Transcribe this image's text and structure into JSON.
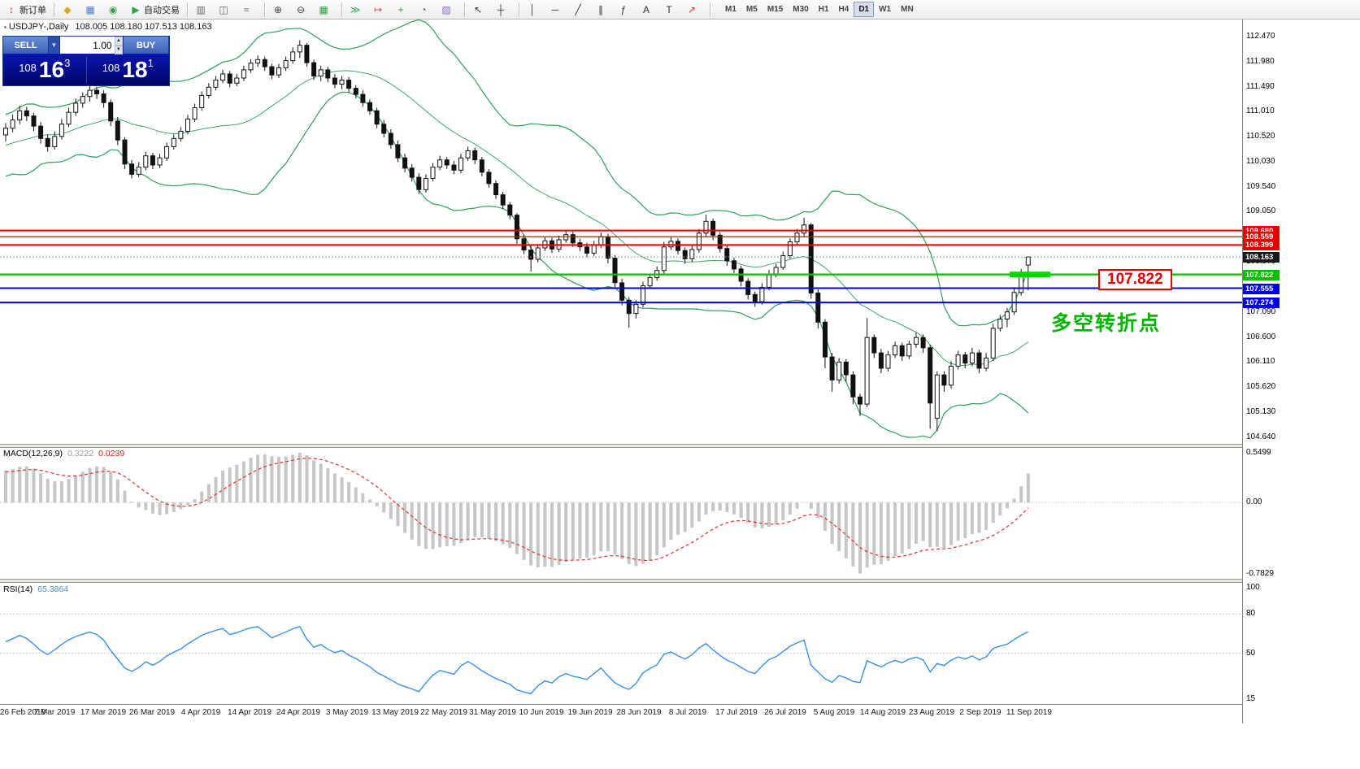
{
  "toolbar": {
    "items": [
      {
        "n": "new-order-button",
        "g": "↕",
        "c": "#cc3333",
        "l": "新订单"
      },
      {
        "sep": true
      },
      {
        "n": "metaeditor-icon",
        "g": "◆",
        "c": "#e0a820"
      },
      {
        "n": "market-watch-icon",
        "g": "▦",
        "c": "#4f7cc8"
      },
      {
        "n": "community-icon",
        "g": "◉",
        "c": "#3da04e"
      },
      {
        "n": "autotrading-button",
        "g": "▶",
        "c": "#2ba443",
        "l": "自动交易"
      },
      {
        "sep": true
      },
      {
        "n": "bar-chart-icon",
        "g": "▥",
        "c": "#666666"
      },
      {
        "n": "candlestick-chart-icon",
        "g": "◫",
        "c": "#666666"
      },
      {
        "n": "line-chart-icon",
        "g": "≈",
        "c": "#666666"
      },
      {
        "sep": true
      },
      {
        "n": "zoom-in-icon",
        "g": "⊕",
        "c": "#444444"
      },
      {
        "n": "zoom-out-icon",
        "g": "⊖",
        "c": "#444444"
      },
      {
        "n": "tile-windows-icon",
        "g": "▦",
        "c": "#2ba443"
      },
      {
        "sep": true
      },
      {
        "n": "auto-scroll-icon",
        "g": "≫",
        "c": "#2ba443"
      },
      {
        "n": "chart-shift-icon",
        "g": "↦",
        "c": "#c05050"
      },
      {
        "n": "indicators-icon",
        "g": "+",
        "c": "#2ba443"
      },
      {
        "n": "periods-icon",
        "g": "◔",
        "c": "#666666"
      },
      {
        "n": "templates-icon",
        "g": "▨",
        "c": "#8a6fc0"
      },
      {
        "sep": true
      },
      {
        "n": "cursor-icon",
        "g": "↖",
        "c": "#333333"
      },
      {
        "n": "crosshair-icon",
        "g": "┼",
        "c": "#333333"
      },
      {
        "sep": true
      },
      {
        "n": "vertical-line-icon",
        "g": "│",
        "c": "#333333"
      },
      {
        "n": "horizontal-line-icon",
        "g": "─",
        "c": "#333333"
      },
      {
        "n": "trendline-icon",
        "g": "╱",
        "c": "#333333"
      },
      {
        "n": "channel-icon",
        "g": "∥",
        "c": "#333333"
      },
      {
        "n": "fibonacci-icon",
        "g": "ƒ",
        "c": "#333333"
      },
      {
        "n": "text-icon",
        "g": "A",
        "c": "#333333"
      },
      {
        "n": "label-icon",
        "g": "T",
        "c": "#333333"
      },
      {
        "n": "arrows-icon",
        "g": "↗",
        "c": "#cc3333"
      },
      {
        "sep": true
      }
    ],
    "timeframes": [
      "M1",
      "M5",
      "M15",
      "M30",
      "H1",
      "H4",
      "D1",
      "W1",
      "MN"
    ],
    "active_timeframe": "D1",
    "right_icons": [
      {
        "n": "search-icon",
        "g": "◎",
        "c": "#4f7cc8"
      },
      {
        "n": "edit-icon",
        "g": "✎",
        "c": "#666666"
      }
    ]
  },
  "chart": {
    "title": "USDJPY-,Daily",
    "ohlc": "108.005 108.180 107.513 108.163",
    "trade_panel": {
      "sell_label": "SELL",
      "buy_label": "BUY",
      "volume": "1.00",
      "bid": {
        "prefix": "108",
        "main": "16",
        "sup": "3"
      },
      "ask": {
        "prefix": "108",
        "main": "18",
        "sup": "1"
      }
    },
    "price_ticks": [
      "112.470",
      "111.980",
      "111.490",
      "111.010",
      "110.520",
      "110.030",
      "109.540",
      "109.050",
      "108.070",
      "107.090",
      "106.600",
      "106.110",
      "105.620",
      "105.130",
      "104.640"
    ],
    "hlines": [
      {
        "price": 108.68,
        "label": "108.680",
        "color": "#e60000",
        "width": 2
      },
      {
        "price": 108.559,
        "label": "108.559",
        "color": "#e60000",
        "width": 1.2
      },
      {
        "price": 108.399,
        "label": "108.399",
        "color": "#e60000",
        "width": 2
      },
      {
        "price": 107.822,
        "label": "107.822",
        "color": "#00c000",
        "width": 2.2,
        "highlight": true
      },
      {
        "price": 107.555,
        "label": "107.555",
        "color": "#0000e6",
        "width": 2
      },
      {
        "price": 107.274,
        "label": "107.274",
        "color": "#0000e6",
        "width": 2
      }
    ],
    "bid_price": {
      "price": 108.163,
      "label": "108.163",
      "bg": "#1a1a1a"
    },
    "annotations": {
      "callout_text": "107.822",
      "note_text": "多空转折点"
    }
  },
  "chart_data": {
    "type": "candlestick",
    "symbol": "USDJPY-",
    "timeframe": "Daily",
    "x_labels": [
      "26 Feb 2019",
      "7 Mar 2019",
      "17 Mar 2019",
      "26 Mar 2019",
      "4 Apr 2019",
      "14 Apr 2019",
      "24 Apr 2019",
      "3 May 2019",
      "13 May 2019",
      "22 May 2019",
      "31 May 2019",
      "10 Jun 2019",
      "19 Jun 2019",
      "28 Jun 2019",
      "8 Jul 2019",
      "17 Jul 2019",
      "26 Jul 2019",
      "5 Aug 2019",
      "14 Aug 2019",
      "23 Aug 2019",
      "2 Sep 2019",
      "11 Sep 2019"
    ],
    "y_range": {
      "max": 112.47,
      "min": 104.64
    },
    "candles": [
      [
        110.55,
        110.78,
        110.42,
        110.68
      ],
      [
        110.68,
        110.95,
        110.6,
        110.84
      ],
      [
        110.84,
        111.12,
        110.76,
        111.02
      ],
      [
        111.02,
        111.1,
        110.82,
        110.92
      ],
      [
        110.92,
        110.98,
        110.62,
        110.72
      ],
      [
        110.72,
        110.8,
        110.38,
        110.48
      ],
      [
        110.48,
        110.56,
        110.22,
        110.32
      ],
      [
        110.32,
        110.62,
        110.26,
        110.52
      ],
      [
        110.52,
        110.86,
        110.46,
        110.76
      ],
      [
        110.76,
        111.08,
        110.7,
        110.99
      ],
      [
        110.99,
        111.26,
        110.92,
        111.17
      ],
      [
        111.17,
        111.38,
        111.08,
        111.3
      ],
      [
        111.3,
        111.5,
        111.2,
        111.42
      ],
      [
        111.42,
        111.48,
        111.25,
        111.35
      ],
      [
        111.35,
        111.42,
        111.08,
        111.18
      ],
      [
        111.18,
        111.24,
        110.72,
        110.82
      ],
      [
        110.82,
        110.9,
        110.35,
        110.45
      ],
      [
        110.45,
        110.5,
        109.88,
        109.98
      ],
      [
        109.98,
        110.06,
        109.7,
        109.78
      ],
      [
        109.78,
        110.02,
        109.72,
        109.92
      ],
      [
        109.92,
        110.22,
        109.86,
        110.14
      ],
      [
        110.14,
        110.2,
        109.88,
        109.96
      ],
      [
        109.96,
        110.18,
        109.9,
        110.1
      ],
      [
        110.1,
        110.4,
        110.04,
        110.32
      ],
      [
        110.32,
        110.56,
        110.26,
        110.48
      ],
      [
        110.48,
        110.7,
        110.42,
        110.62
      ],
      [
        110.62,
        110.94,
        110.56,
        110.86
      ],
      [
        110.86,
        111.16,
        110.8,
        111.08
      ],
      [
        111.08,
        111.4,
        111.02,
        111.32
      ],
      [
        111.32,
        111.56,
        111.26,
        111.48
      ],
      [
        111.48,
        111.7,
        111.42,
        111.62
      ],
      [
        111.62,
        111.82,
        111.56,
        111.74
      ],
      [
        111.74,
        111.8,
        111.48,
        111.56
      ],
      [
        111.56,
        111.74,
        111.5,
        111.66
      ],
      [
        111.66,
        111.9,
        111.6,
        111.82
      ],
      [
        111.82,
        112.03,
        111.76,
        111.95
      ],
      [
        111.95,
        112.1,
        111.88,
        112.02
      ],
      [
        112.02,
        112.08,
        111.8,
        111.88
      ],
      [
        111.88,
        111.94,
        111.64,
        111.72
      ],
      [
        111.72,
        111.94,
        111.66,
        111.86
      ],
      [
        111.86,
        112.08,
        111.8,
        112.0
      ],
      [
        112.0,
        112.26,
        111.94,
        112.17
      ],
      [
        112.17,
        112.4,
        112.05,
        112.3
      ],
      [
        112.3,
        112.34,
        111.88,
        111.96
      ],
      [
        111.96,
        112.02,
        111.62,
        111.7
      ],
      [
        111.7,
        111.9,
        111.6,
        111.82
      ],
      [
        111.82,
        111.88,
        111.58,
        111.66
      ],
      [
        111.66,
        111.74,
        111.46,
        111.54
      ],
      [
        111.54,
        111.7,
        111.44,
        111.62
      ],
      [
        111.62,
        111.68,
        111.38,
        111.46
      ],
      [
        111.46,
        111.52,
        111.26,
        111.34
      ],
      [
        111.34,
        111.42,
        111.1,
        111.18
      ],
      [
        111.18,
        111.24,
        110.94,
        111.02
      ],
      [
        111.02,
        111.08,
        110.68,
        110.76
      ],
      [
        110.76,
        110.84,
        110.5,
        110.58
      ],
      [
        110.58,
        110.66,
        110.28,
        110.36
      ],
      [
        110.36,
        110.44,
        110.02,
        110.1
      ],
      [
        110.1,
        110.18,
        109.82,
        109.9
      ],
      [
        109.9,
        109.98,
        109.64,
        109.72
      ],
      [
        109.72,
        109.8,
        109.4,
        109.48
      ],
      [
        109.48,
        109.78,
        109.42,
        109.7
      ],
      [
        109.7,
        110.0,
        109.64,
        109.92
      ],
      [
        109.92,
        110.14,
        109.86,
        110.06
      ],
      [
        110.06,
        110.12,
        109.88,
        109.96
      ],
      [
        109.96,
        110.04,
        109.78,
        109.86
      ],
      [
        109.86,
        110.18,
        109.8,
        110.1
      ],
      [
        110.1,
        110.32,
        110.04,
        110.24
      ],
      [
        110.24,
        110.3,
        109.98,
        110.06
      ],
      [
        110.06,
        110.12,
        109.74,
        109.82
      ],
      [
        109.82,
        109.88,
        109.52,
        109.6
      ],
      [
        109.6,
        109.66,
        109.3,
        109.38
      ],
      [
        109.38,
        109.44,
        109.1,
        109.18
      ],
      [
        109.18,
        109.24,
        108.9,
        108.98
      ],
      [
        108.98,
        109.02,
        108.42,
        108.52
      ],
      [
        108.52,
        108.6,
        108.22,
        108.3
      ],
      [
        108.3,
        108.38,
        107.88,
        108.12
      ],
      [
        108.12,
        108.42,
        108.06,
        108.34
      ],
      [
        108.34,
        108.56,
        108.28,
        108.48
      ],
      [
        108.48,
        108.54,
        108.24,
        108.32
      ],
      [
        108.32,
        108.58,
        108.26,
        108.5
      ],
      [
        108.5,
        108.68,
        108.44,
        108.6
      ],
      [
        108.6,
        108.66,
        108.36,
        108.44
      ],
      [
        108.44,
        108.52,
        108.28,
        108.36
      ],
      [
        108.36,
        108.44,
        108.16,
        108.24
      ],
      [
        108.24,
        108.48,
        108.18,
        108.4
      ],
      [
        108.4,
        108.64,
        108.34,
        108.56
      ],
      [
        108.56,
        108.62,
        108.04,
        108.14
      ],
      [
        108.14,
        108.2,
        107.56,
        107.66
      ],
      [
        107.66,
        107.74,
        107.22,
        107.32
      ],
      [
        107.32,
        107.38,
        106.78,
        107.06
      ],
      [
        107.06,
        107.32,
        106.96,
        107.24
      ],
      [
        107.24,
        107.68,
        107.18,
        107.6
      ],
      [
        107.6,
        107.84,
        107.54,
        107.76
      ],
      [
        107.76,
        107.98,
        107.7,
        107.9
      ],
      [
        107.9,
        108.46,
        107.84,
        108.36
      ],
      [
        108.36,
        108.55,
        108.3,
        108.47
      ],
      [
        108.47,
        108.53,
        108.21,
        108.29
      ],
      [
        108.29,
        108.35,
        108.03,
        108.13
      ],
      [
        108.13,
        108.39,
        108.07,
        108.31
      ],
      [
        108.31,
        108.71,
        108.25,
        108.63
      ],
      [
        108.63,
        108.99,
        108.57,
        108.86
      ],
      [
        108.86,
        108.91,
        108.49,
        108.59
      ],
      [
        108.59,
        108.65,
        108.25,
        108.33
      ],
      [
        108.33,
        108.39,
        107.99,
        108.09
      ],
      [
        108.09,
        108.15,
        107.85,
        107.93
      ],
      [
        107.93,
        107.99,
        107.59,
        107.69
      ],
      [
        107.69,
        107.75,
        107.33,
        107.43
      ],
      [
        107.43,
        107.49,
        107.19,
        107.29
      ],
      [
        107.29,
        107.65,
        107.23,
        107.57
      ],
      [
        107.57,
        107.91,
        107.51,
        107.83
      ],
      [
        107.83,
        108.03,
        107.77,
        107.96
      ],
      [
        107.96,
        108.27,
        107.91,
        108.19
      ],
      [
        108.19,
        108.53,
        108.13,
        108.46
      ],
      [
        108.46,
        108.71,
        108.41,
        108.63
      ],
      [
        108.63,
        108.93,
        108.57,
        108.79
      ],
      [
        108.79,
        108.83,
        107.35,
        107.46
      ],
      [
        107.46,
        107.53,
        106.77,
        106.89
      ],
      [
        106.89,
        106.95,
        105.99,
        106.21
      ],
      [
        106.21,
        106.29,
        105.53,
        105.76
      ],
      [
        105.76,
        106.19,
        105.69,
        106.11
      ],
      [
        106.11,
        106.17,
        105.73,
        105.86
      ],
      [
        105.86,
        105.93,
        105.29,
        105.43
      ],
      [
        105.43,
        105.49,
        105.06,
        105.29
      ],
      [
        105.29,
        106.97,
        105.23,
        106.59
      ],
      [
        106.59,
        106.65,
        106.19,
        106.29
      ],
      [
        106.29,
        106.37,
        105.89,
        105.99
      ],
      [
        105.99,
        106.33,
        105.93,
        106.25
      ],
      [
        106.25,
        106.51,
        106.19,
        106.43
      ],
      [
        106.43,
        106.49,
        106.13,
        106.23
      ],
      [
        106.23,
        106.53,
        106.17,
        106.46
      ],
      [
        106.46,
        106.69,
        106.39,
        106.59
      ],
      [
        106.59,
        106.65,
        106.29,
        106.39
      ],
      [
        106.39,
        106.45,
        104.81,
        105.31
      ],
      [
        105.01,
        105.93,
        104.76,
        105.86
      ],
      [
        105.86,
        105.93,
        105.53,
        105.66
      ],
      [
        105.66,
        106.13,
        105.59,
        106.03
      ],
      [
        106.03,
        106.33,
        105.97,
        106.25
      ],
      [
        106.25,
        106.31,
        105.99,
        106.09
      ],
      [
        106.09,
        106.39,
        106.03,
        106.29
      ],
      [
        106.29,
        106.35,
        105.89,
        105.99
      ],
      [
        105.99,
        106.29,
        105.93,
        106.19
      ],
      [
        106.19,
        106.86,
        106.13,
        106.77
      ],
      [
        106.77,
        107.03,
        106.71,
        106.95
      ],
      [
        106.95,
        107.17,
        106.79,
        107.09
      ],
      [
        107.09,
        107.55,
        107.03,
        107.47
      ],
      [
        107.47,
        107.93,
        107.41,
        107.85
      ],
      [
        108.005,
        108.18,
        107.513,
        108.163
      ]
    ],
    "indicators": {
      "bollinger": {
        "period": 20,
        "deviation": 2,
        "color": "#2e9e5e"
      },
      "macd": {
        "label": "MACD(12,26,9)",
        "main_value": "0.3222",
        "signal_value": "0.0239",
        "scale_labels": [
          "0.5499",
          "0.00",
          "-0.7829"
        ],
        "histogram_color": "#c6c6c6",
        "signal_color": "#e03030"
      },
      "rsi": {
        "label": "RSI(14)",
        "value": "65.3864",
        "scale_labels": [
          "100",
          "80",
          "50",
          "15"
        ],
        "levels": [
          80,
          50
        ],
        "color": "#3b8fe0"
      }
    }
  }
}
